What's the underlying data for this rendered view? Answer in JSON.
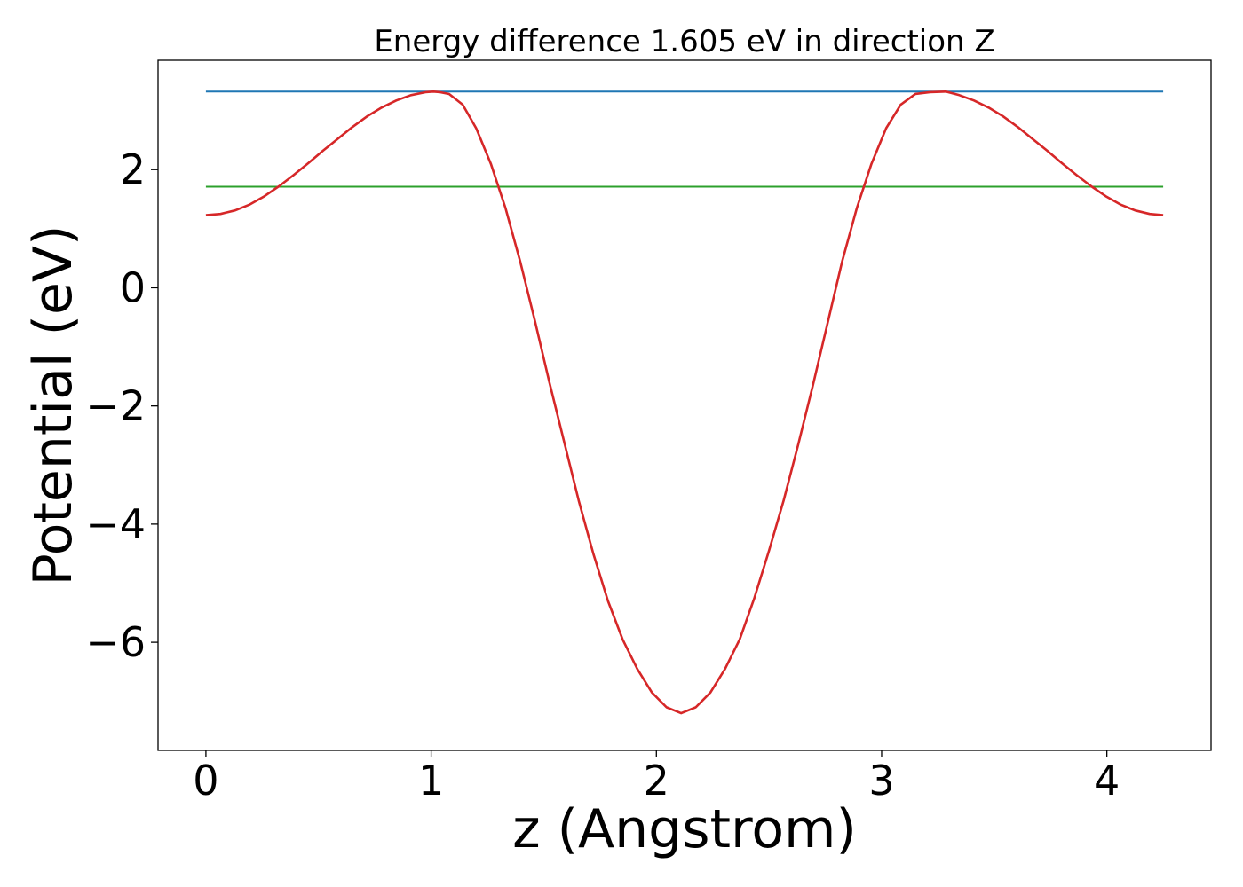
{
  "chart_data": {
    "type": "line",
    "title": "Energy difference 1.605 eV in direction Z",
    "xlabel": "z (Angstrom)",
    "ylabel": "Potential (eV)",
    "xlim": [
      -0.2125,
      4.4625
    ],
    "ylim": [
      -7.83,
      3.85
    ],
    "grid": false,
    "legend": "none",
    "x_ticks": [
      0,
      1,
      2,
      3,
      4
    ],
    "x_tick_labels": [
      "0",
      "1",
      "2",
      "3",
      "4"
    ],
    "y_ticks": [
      -6,
      -4,
      -2,
      0,
      2
    ],
    "y_tick_labels": [
      "−6",
      "−4",
      "−2",
      "0",
      "2"
    ],
    "series": [
      {
        "color": "#1f77b4",
        "x": [
          0.0,
          4.25
        ],
        "y": [
          3.32,
          3.32
        ]
      },
      {
        "color": "#2ca02c",
        "x": [
          0.0,
          4.25
        ],
        "y": [
          1.71,
          1.71
        ]
      },
      {
        "color": "#d62728",
        "x": [
          0.0,
          0.065,
          0.13,
          0.195,
          0.26,
          0.325,
          0.39,
          0.455,
          0.52,
          0.585,
          0.65,
          0.715,
          0.78,
          0.845,
          0.91,
          0.975,
          1.01,
          1.04,
          1.08,
          1.14,
          1.2,
          1.265,
          1.33,
          1.395,
          1.46,
          1.525,
          1.59,
          1.655,
          1.72,
          1.785,
          1.85,
          1.915,
          1.98,
          2.045,
          2.11,
          2.175,
          2.24,
          2.305,
          2.37,
          2.435,
          2.5,
          2.565,
          2.63,
          2.695,
          2.76,
          2.825,
          2.89,
          2.955,
          3.02,
          3.085,
          3.15,
          3.215,
          3.285,
          3.345,
          3.41,
          3.475,
          3.54,
          3.605,
          3.67,
          3.735,
          3.8,
          3.865,
          3.93,
          3.995,
          4.06,
          4.125,
          4.19,
          4.25
        ],
        "y": [
          1.23,
          1.25,
          1.31,
          1.41,
          1.55,
          1.72,
          1.91,
          2.11,
          2.32,
          2.52,
          2.72,
          2.9,
          3.05,
          3.17,
          3.26,
          3.31,
          3.32,
          3.31,
          3.28,
          3.1,
          2.7,
          2.1,
          1.35,
          0.45,
          -0.55,
          -1.6,
          -2.6,
          -3.6,
          -4.5,
          -5.3,
          -5.95,
          -6.45,
          -6.85,
          -7.1,
          -7.2,
          -7.1,
          -6.85,
          -6.45,
          -5.95,
          -5.25,
          -4.45,
          -3.6,
          -2.65,
          -1.65,
          -0.6,
          0.45,
          1.35,
          2.1,
          2.7,
          3.1,
          3.28,
          3.31,
          3.32,
          3.26,
          3.17,
          3.05,
          2.9,
          2.72,
          2.52,
          2.32,
          2.11,
          1.91,
          1.72,
          1.55,
          1.41,
          1.31,
          1.25,
          1.23
        ]
      }
    ]
  }
}
